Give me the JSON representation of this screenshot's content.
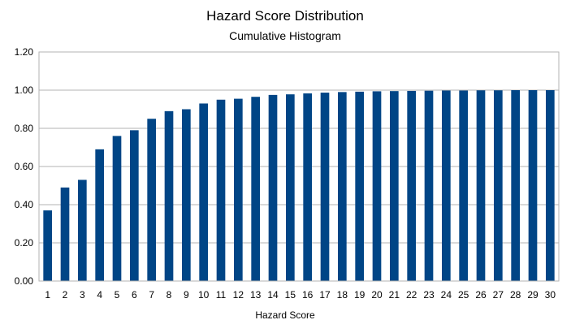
{
  "chart_data": {
    "type": "bar",
    "title": "Hazard Score Distribution",
    "subtitle": "Cumulative Histogram",
    "xlabel": "Hazard Score",
    "ylabel": "",
    "categories": [
      "1",
      "2",
      "3",
      "4",
      "5",
      "6",
      "7",
      "8",
      "9",
      "10",
      "11",
      "12",
      "13",
      "14",
      "15",
      "16",
      "17",
      "18",
      "19",
      "20",
      "21",
      "22",
      "23",
      "24",
      "25",
      "26",
      "27",
      "28",
      "29",
      "30"
    ],
    "values": [
      0.37,
      0.49,
      0.53,
      0.69,
      0.76,
      0.79,
      0.85,
      0.89,
      0.9,
      0.93,
      0.95,
      0.955,
      0.965,
      0.975,
      0.978,
      0.983,
      0.987,
      0.99,
      0.992,
      0.994,
      0.995,
      0.996,
      0.997,
      0.998,
      0.998,
      0.999,
      0.999,
      1.0,
      1.0,
      1.0
    ],
    "ylim": [
      0,
      1.2
    ],
    "y_ticks": [
      "0.00",
      "0.20",
      "0.40",
      "0.60",
      "0.80",
      "1.00",
      "1.20"
    ],
    "y_tick_values": [
      0,
      0.2,
      0.4,
      0.6,
      0.8,
      1.0,
      1.2
    ],
    "grid": true,
    "legend": "none",
    "bar_color": "#004586",
    "grid_color": "#b3b3b3"
  }
}
